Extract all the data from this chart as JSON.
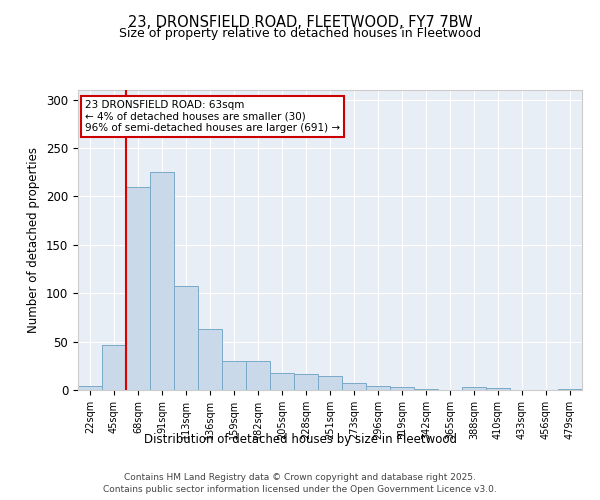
{
  "title_line1": "23, DRONSFIELD ROAD, FLEETWOOD, FY7 7BW",
  "title_line2": "Size of property relative to detached houses in Fleetwood",
  "xlabel": "Distribution of detached houses by size in Fleetwood",
  "ylabel": "Number of detached properties",
  "bin_labels": [
    "22sqm",
    "45sqm",
    "68sqm",
    "91sqm",
    "113sqm",
    "136sqm",
    "159sqm",
    "182sqm",
    "205sqm",
    "228sqm",
    "251sqm",
    "273sqm",
    "296sqm",
    "319sqm",
    "342sqm",
    "365sqm",
    "388sqm",
    "410sqm",
    "433sqm",
    "456sqm",
    "479sqm"
  ],
  "bar_values": [
    4,
    46,
    210,
    225,
    107,
    63,
    30,
    30,
    18,
    17,
    14,
    7,
    4,
    3,
    1,
    0,
    3,
    2,
    0,
    0,
    1
  ],
  "bar_color": "#c9d9ea",
  "bar_edge_color": "#7aaac8",
  "annotation_text": "23 DRONSFIELD ROAD: 63sqm\n← 4% of detached houses are smaller (30)\n96% of semi-detached houses are larger (691) →",
  "annotation_box_facecolor": "#ffffff",
  "annotation_box_edgecolor": "#cc0000",
  "red_line_index": 2,
  "ylim": [
    0,
    310
  ],
  "yticks": [
    0,
    50,
    100,
    150,
    200,
    250,
    300
  ],
  "footer_line1": "Contains HM Land Registry data © Crown copyright and database right 2025.",
  "footer_line2": "Contains public sector information licensed under the Open Government Licence v3.0.",
  "plot_bg_color": "#e8eef5",
  "fig_bg_color": "#ffffff"
}
